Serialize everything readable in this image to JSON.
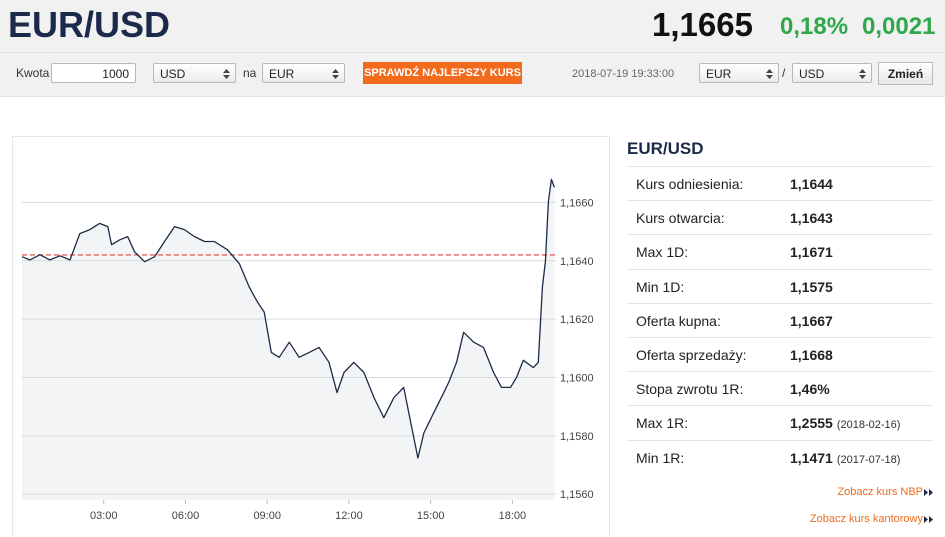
{
  "header": {
    "title": "EUR/USD",
    "price": "1,1665",
    "change_pct": "0,18%",
    "change_abs": "0,0021"
  },
  "form": {
    "amount_label": "Kwota",
    "amount": "1000",
    "from": "USD",
    "to_label": "na",
    "to": "EUR",
    "button": "SPRAWDŹ NAJLEPSZY KURS",
    "timestamp": "2018-07-19 19:33:00",
    "pair_base": "EUR",
    "separator": "/",
    "pair_quote": "USD",
    "change_button": "Zmień"
  },
  "chart_data": {
    "type": "line",
    "color": "#1c2b45",
    "area_color": "#f3f4f6",
    "x": [
      0,
      0.29,
      0.66,
      1.02,
      1.39,
      1.76,
      2.12,
      2.49,
      2.85,
      3.15,
      3.29,
      3.59,
      3.88,
      4.13,
      4.5,
      4.87,
      5.23,
      5.6,
      5.96,
      6.33,
      6.7,
      7.06,
      7.54,
      7.98,
      8.34,
      8.64,
      8.89,
      9.15,
      9.44,
      9.81,
      10.17,
      10.54,
      10.9,
      11.27,
      11.56,
      11.82,
      12.18,
      12.55,
      12.92,
      13.28,
      13.65,
      14.01,
      14.27,
      14.53,
      14.75,
      15.11,
      15.48,
      15.66,
      15.95,
      16.21,
      16.58,
      16.94,
      17.31,
      17.6,
      17.93,
      18.15,
      18.4,
      18.77,
      18.95,
      19.1,
      19.21,
      19.32,
      19.43,
      19.54
    ],
    "values": [
      1.16414,
      1.16403,
      1.16421,
      1.16403,
      1.16417,
      1.16403,
      1.16493,
      1.16507,
      1.16528,
      1.16517,
      1.16455,
      1.16472,
      1.16483,
      1.16431,
      1.16397,
      1.16414,
      1.16466,
      1.16517,
      1.16507,
      1.16483,
      1.16466,
      1.16466,
      1.16438,
      1.1639,
      1.1631,
      1.16259,
      1.16224,
      1.16086,
      1.16069,
      1.16121,
      1.16069,
      1.16086,
      1.16103,
      1.16052,
      1.15948,
      1.16017,
      1.16052,
      1.16017,
      1.15931,
      1.15862,
      1.15931,
      1.15966,
      1.15845,
      1.15724,
      1.1581,
      1.15879,
      1.15948,
      1.15983,
      1.16052,
      1.16155,
      1.16121,
      1.16103,
      1.16017,
      1.15966,
      1.15966,
      1.16,
      1.16059,
      1.16034,
      1.16052,
      1.1631,
      1.16397,
      1.16603,
      1.16679,
      1.16652
    ],
    "xlim": [
      0,
      19.6
    ],
    "xticks": [
      {
        "value": 3,
        "label": "03:00"
      },
      {
        "value": 6,
        "label": "06:00"
      },
      {
        "value": 9,
        "label": "09:00"
      },
      {
        "value": 12,
        "label": "12:00"
      },
      {
        "value": 15,
        "label": "15:00"
      },
      {
        "value": 18,
        "label": "18:00"
      }
    ],
    "ylim": [
      1.1558,
      1.1679
    ],
    "yticks": [
      {
        "value": 1.156,
        "label": "1,1560"
      },
      {
        "value": 1.158,
        "label": "1,1580"
      },
      {
        "value": 1.16,
        "label": "1,1600"
      },
      {
        "value": 1.162,
        "label": "1,1620"
      },
      {
        "value": 1.164,
        "label": "1,1640"
      },
      {
        "value": 1.166,
        "label": "1,1660"
      }
    ],
    "grid": true,
    "reference_line": {
      "value": 1.1642,
      "color": "#e0413a"
    }
  },
  "stats": {
    "title": "EUR/USD",
    "rows": [
      {
        "label": "Kurs odniesienia:",
        "value": "1,1644"
      },
      {
        "label": "Kurs otwarcia:",
        "value": "1,1643"
      },
      {
        "label": "Max 1D:",
        "value": "1,1671"
      },
      {
        "label": "Min 1D:",
        "value": "1,1575"
      },
      {
        "label": "Oferta kupna:",
        "value": "1,1667"
      },
      {
        "label": "Oferta sprzedaży:",
        "value": "1,1668"
      },
      {
        "label": "Stopa zwrotu 1R:",
        "value": "1,46%"
      },
      {
        "label": "Max 1R:",
        "value": "1,2555",
        "date": "(2018-02-16)"
      },
      {
        "label": "Min 1R:",
        "value": "1,1471",
        "date": "(2017-07-18)"
      }
    ]
  },
  "links": [
    "Zobacz kurs NBP",
    "Zobacz kurs kantorowy"
  ]
}
